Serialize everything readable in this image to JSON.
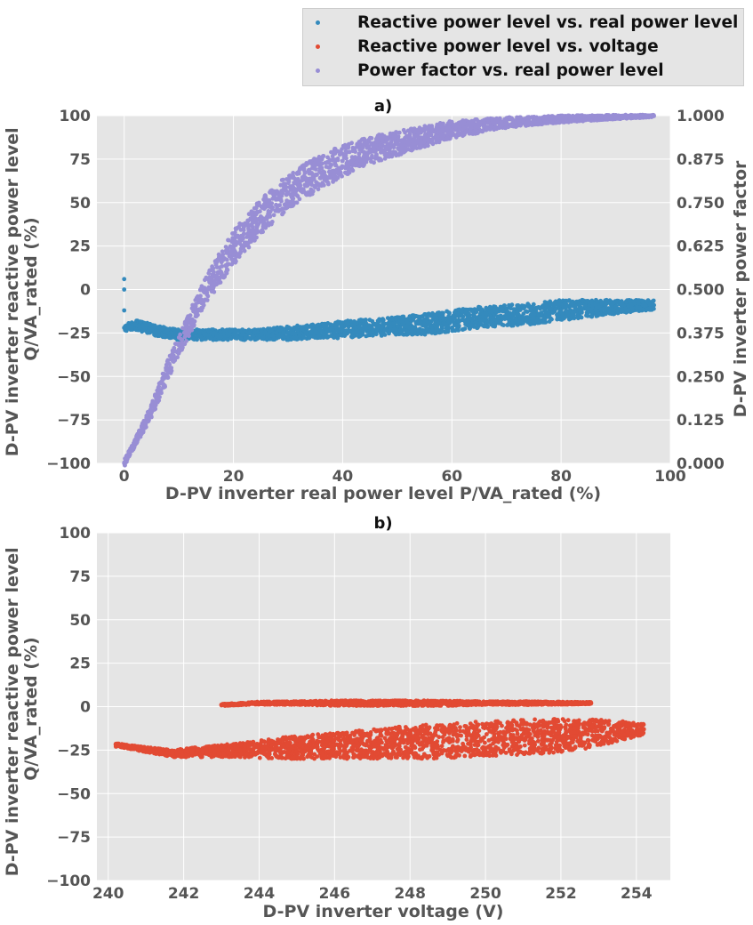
{
  "legend": {
    "items": [
      {
        "label": "Reactive power level vs. real power level",
        "color": "#348abd"
      },
      {
        "label": "Reactive power level vs. voltage",
        "color": "#e24a33"
      },
      {
        "label": "Power factor vs. real power level",
        "color": "#988ed5"
      }
    ]
  },
  "chart_data": [
    {
      "panel_title": "a)",
      "type": "scatter",
      "xlabel": "D-PV inverter real power level P/VA_rated (%)",
      "ylabel_lines": [
        "D-PV inverter reactive power level",
        "Q/VA_rated (%)"
      ],
      "y2label": "D-PV inverter power factor",
      "xlim": [
        -5,
        100
      ],
      "ylim": [
        -100,
        100
      ],
      "y2lim": [
        0,
        1
      ],
      "xticks": [
        0,
        20,
        40,
        60,
        80,
        100
      ],
      "yticks": [
        100,
        75,
        50,
        25,
        0,
        -25,
        -50,
        -75,
        -100
      ],
      "y2ticks": [
        1.0,
        0.875,
        0.75,
        0.625,
        0.5,
        0.375,
        0.25,
        0.125,
        0.0
      ],
      "grid": true,
      "series": [
        {
          "name": "Reactive power level vs. real power level",
          "color": "#348abd",
          "axis": "left",
          "x": [
            0,
            0,
            0,
            0,
            2,
            5,
            8,
            10,
            15,
            20,
            25,
            30,
            35,
            40,
            45,
            50,
            55,
            60,
            65,
            70,
            75,
            80,
            85,
            90,
            95,
            97
          ],
          "y": [
            6,
            0,
            -12,
            -22,
            -20,
            -23,
            -25,
            -26,
            -26,
            -26,
            -26,
            -25,
            -24,
            -23,
            -22,
            -21,
            -20,
            -18,
            -16,
            -15,
            -14,
            -12,
            -11,
            -10,
            -9,
            -9
          ],
          "spread": [
            2,
            2,
            2,
            2,
            3,
            3,
            3,
            3,
            3,
            3,
            3,
            4,
            4,
            5,
            5,
            5,
            6,
            6,
            6,
            6,
            6,
            6,
            5,
            4,
            3,
            3
          ]
        },
        {
          "name": "Power factor vs. real power level",
          "color": "#988ed5",
          "axis": "right",
          "x": [
            0,
            2,
            5,
            8,
            10,
            15,
            20,
            25,
            30,
            35,
            40,
            45,
            50,
            55,
            60,
            65,
            70,
            75,
            80,
            85,
            90,
            95,
            97
          ],
          "y": [
            0.0,
            0.06,
            0.15,
            0.27,
            0.34,
            0.5,
            0.62,
            0.71,
            0.78,
            0.83,
            0.87,
            0.9,
            0.92,
            0.94,
            0.96,
            0.97,
            0.98,
            0.985,
            0.99,
            0.993,
            0.996,
            0.998,
            0.999
          ],
          "spread": [
            0.01,
            0.01,
            0.02,
            0.03,
            0.03,
            0.04,
            0.05,
            0.05,
            0.05,
            0.05,
            0.045,
            0.04,
            0.035,
            0.03,
            0.025,
            0.02,
            0.015,
            0.012,
            0.01,
            0.008,
            0.006,
            0.004,
            0.003
          ]
        }
      ]
    },
    {
      "panel_title": "b)",
      "type": "scatter",
      "xlabel": "D-PV inverter voltage (V)",
      "ylabel_lines": [
        "D-PV inverter reactive power level",
        "Q/VA_rated (%)"
      ],
      "xlim": [
        239.7,
        254.9
      ],
      "ylim": [
        -100,
        100
      ],
      "xticks": [
        240,
        242,
        244,
        246,
        248,
        250,
        252,
        254
      ],
      "yticks": [
        100,
        75,
        50,
        25,
        0,
        -25,
        -50,
        -75,
        -100
      ],
      "grid": true,
      "series": [
        {
          "name": "Reactive power level vs. voltage",
          "color": "#e24a33",
          "x": [
            240.2,
            240.5,
            241.7,
            242.5,
            243.5,
            244.5,
            245.5,
            246.5,
            247.5,
            248.5,
            249.5,
            250.5,
            251.5,
            252.5,
            253.5,
            254.2
          ],
          "y": [
            -22,
            -23,
            -27,
            -26,
            -25,
            -24,
            -23,
            -22,
            -21,
            -20,
            -19,
            -18,
            -17,
            -16,
            -14,
            -13
          ],
          "spread": [
            1,
            1,
            2,
            3,
            4,
            6,
            7,
            8,
            9,
            10,
            10,
            10,
            10,
            9,
            6,
            3
          ]
        },
        {
          "name": "Reactive power level vs. voltage",
          "color": "#e24a33",
          "x": [
            243.0,
            243.5,
            244.0,
            245.0,
            246.0,
            247.0,
            248.0,
            249.0,
            250.0,
            251.0,
            252.0,
            252.8
          ],
          "y": [
            1,
            1.5,
            2,
            2,
            2,
            2,
            2,
            2,
            2,
            2,
            2,
            2
          ],
          "spread": [
            0.6,
            0.6,
            0.8,
            1,
            1.5,
            1.5,
            1.5,
            1.5,
            1,
            1,
            0.8,
            0.6
          ]
        }
      ]
    }
  ]
}
